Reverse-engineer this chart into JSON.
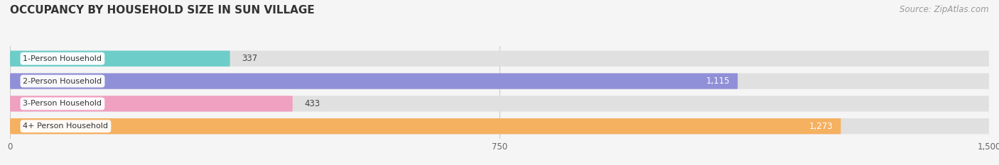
{
  "title": "OCCUPANCY BY HOUSEHOLD SIZE IN SUN VILLAGE",
  "source": "Source: ZipAtlas.com",
  "categories": [
    "1-Person Household",
    "2-Person Household",
    "3-Person Household",
    "4+ Person Household"
  ],
  "values": [
    337,
    1115,
    433,
    1273
  ],
  "bar_colors": [
    "#6dcdc8",
    "#9090d8",
    "#f0a0c0",
    "#f5b060"
  ],
  "label_colors": [
    "#333333",
    "#ffffff",
    "#333333",
    "#ffffff"
  ],
  "background_color": "#f5f5f5",
  "bar_bg_color": "#e0e0e0",
  "xlim": [
    0,
    1500
  ],
  "xticks": [
    0,
    750,
    1500
  ],
  "figsize": [
    14.06,
    2.33
  ],
  "dpi": 100
}
